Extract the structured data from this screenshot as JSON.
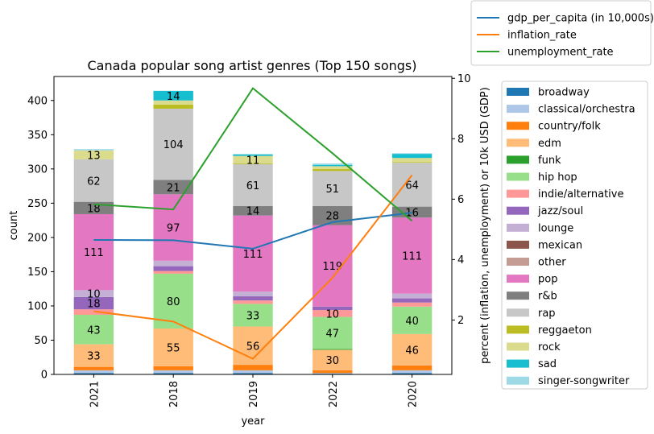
{
  "chart_data": {
    "type": "bar",
    "stacked": true,
    "title": "Canada popular song artist genres (Top 150 songs)",
    "xlabel": "year",
    "ylabel": "count",
    "y2label": "percent (inflation, unemployment) or 10k USD (GDP)",
    "categories": [
      "2021",
      "2018",
      "2019",
      "2022",
      "2020"
    ],
    "ylim": [
      0,
      435
    ],
    "yticks": [
      0,
      50,
      100,
      150,
      200,
      250,
      300,
      350,
      400
    ],
    "y2lim": [
      0.2,
      10.06
    ],
    "y2ticks": [
      2,
      4,
      6,
      8,
      10
    ],
    "legend_placement": "right",
    "series": [
      {
        "name": "broadway",
        "color": "#1f77b4",
        "values": [
          2,
          2,
          2,
          1,
          2
        ]
      },
      {
        "name": "classical/orchestra",
        "color": "#aec7e8",
        "values": [
          4,
          4,
          4,
          1,
          4
        ]
      },
      {
        "name": "country/folk",
        "color": "#ff7f0e",
        "values": [
          5,
          6,
          8,
          4,
          7
        ]
      },
      {
        "name": "edm",
        "color": "#ffbb78",
        "values": [
          33,
          55,
          56,
          30,
          46
        ]
      },
      {
        "name": "funk",
        "color": "#2ca02c",
        "values": [
          0,
          0,
          0,
          1,
          0
        ]
      },
      {
        "name": "hip hop",
        "color": "#98df8a",
        "values": [
          43,
          80,
          33,
          47,
          40
        ]
      },
      {
        "name": "indie/alternative",
        "color": "#ff9896",
        "values": [
          8,
          4,
          5,
          10,
          6
        ]
      },
      {
        "name": "jazz/soul",
        "color": "#9467bd",
        "values": [
          18,
          7,
          6,
          5,
          6
        ]
      },
      {
        "name": "lounge",
        "color": "#c5b0d5",
        "values": [
          10,
          8,
          7,
          0,
          7
        ]
      },
      {
        "name": "mexican",
        "color": "#8c564b",
        "values": [
          0,
          0,
          0,
          0,
          0
        ]
      },
      {
        "name": "other",
        "color": "#c49c94",
        "values": [
          0,
          0,
          0,
          0,
          0
        ]
      },
      {
        "name": "pop",
        "color": "#e377c2",
        "values": [
          111,
          97,
          111,
          119,
          111
        ]
      },
      {
        "name": "r&b",
        "color": "#7f7f7f",
        "values": [
          18,
          21,
          14,
          28,
          16
        ]
      },
      {
        "name": "rap",
        "color": "#c7c7c7",
        "values": [
          62,
          104,
          61,
          51,
          64
        ]
      },
      {
        "name": "reggaeton",
        "color": "#bcbd22",
        "values": [
          0,
          6,
          1,
          3,
          1
        ]
      },
      {
        "name": "rock",
        "color": "#dbdb8d",
        "values": [
          13,
          6,
          11,
          4,
          6
        ]
      },
      {
        "name": "sad",
        "color": "#17becf",
        "values": [
          0,
          14,
          2,
          2,
          6
        ]
      },
      {
        "name": "singer-songwriter",
        "color": "#9edae5",
        "values": [
          2,
          0,
          1,
          2,
          1
        ]
      }
    ],
    "bar_labels": {
      "edm": [
        "33",
        "55",
        "56",
        "30",
        "46"
      ],
      "hip hop": [
        "43",
        "80",
        "33",
        "47",
        "40"
      ],
      "indie/alternative": [
        "",
        "",
        "",
        "10",
        ""
      ],
      "jazz/soul": [
        "18",
        "",
        "",
        "",
        ""
      ],
      "lounge": [
        "10",
        "",
        "",
        "",
        ""
      ],
      "pop": [
        "111",
        "97",
        "111",
        "119",
        "111"
      ],
      "r&b": [
        "18",
        "21",
        "14",
        "28",
        "16"
      ],
      "rap": [
        "62",
        "104",
        "61",
        "51",
        "64"
      ],
      "rock": [
        "13",
        "",
        "11",
        "",
        ""
      ],
      "sad": [
        "",
        "14",
        "",
        "",
        ""
      ]
    },
    "lines": [
      {
        "name": "gdp_per_capita (in 10,000s)",
        "color": "#1f77b4",
        "values": [
          4.65,
          4.64,
          4.36,
          5.24,
          5.55
        ]
      },
      {
        "name": "inflation_rate",
        "color": "#ff7f0e",
        "values": [
          2.29,
          1.95,
          0.72,
          3.4,
          6.8
        ]
      },
      {
        "name": "unemployment_rate",
        "color": "#2ca02c",
        "values": [
          5.83,
          5.66,
          9.67,
          7.52,
          5.28
        ]
      }
    ]
  }
}
